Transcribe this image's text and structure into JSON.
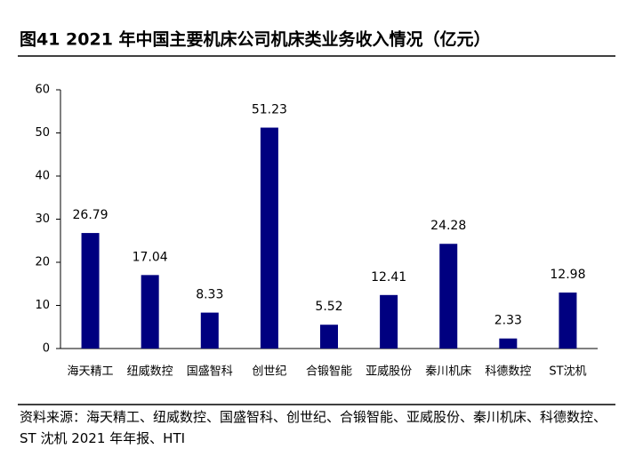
{
  "chart_data": {
    "type": "bar",
    "title": "图41 2021 年中国主要机床公司机床类业务收入情况（亿元）",
    "categories": [
      "海天精工",
      "纽威数控",
      "国盛智科",
      "创世纪",
      "合锻智能",
      "亚威股份",
      "秦川机床",
      "科德数控",
      "ST沈机"
    ],
    "values": [
      26.79,
      17.04,
      8.33,
      51.23,
      5.52,
      12.41,
      24.28,
      2.33,
      12.98
    ],
    "color": "#000080",
    "ylim": [
      0,
      60
    ],
    "yticks": [
      0,
      10,
      20,
      30,
      40,
      50,
      60
    ],
    "source": "资料来源：海天精工、纽威数控、国盛智科、创世纪、合锻智能、亚威股份、秦川机床、科德数控、ST 沈机 2021 年年报、HTI"
  }
}
